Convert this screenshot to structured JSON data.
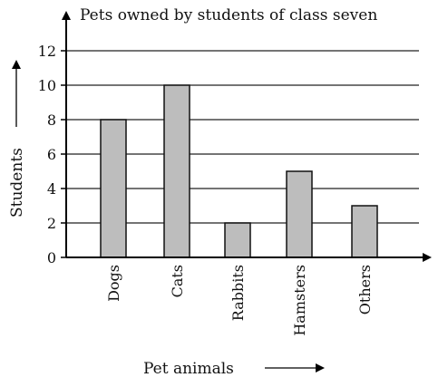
{
  "chart_data": {
    "type": "bar",
    "title": "Pets owned by students of class seven",
    "xlabel": "Pet animals",
    "ylabel": "Students",
    "categories": [
      "Dogs",
      "Cats",
      "Rabbits",
      "Hamsters",
      "Others"
    ],
    "values": [
      8,
      10,
      2,
      5,
      3
    ],
    "ylim": [
      0,
      12
    ],
    "yticks": [
      0,
      2,
      4,
      6,
      8,
      10,
      12
    ],
    "grid": true,
    "bar_color": "#bdbdbd"
  }
}
